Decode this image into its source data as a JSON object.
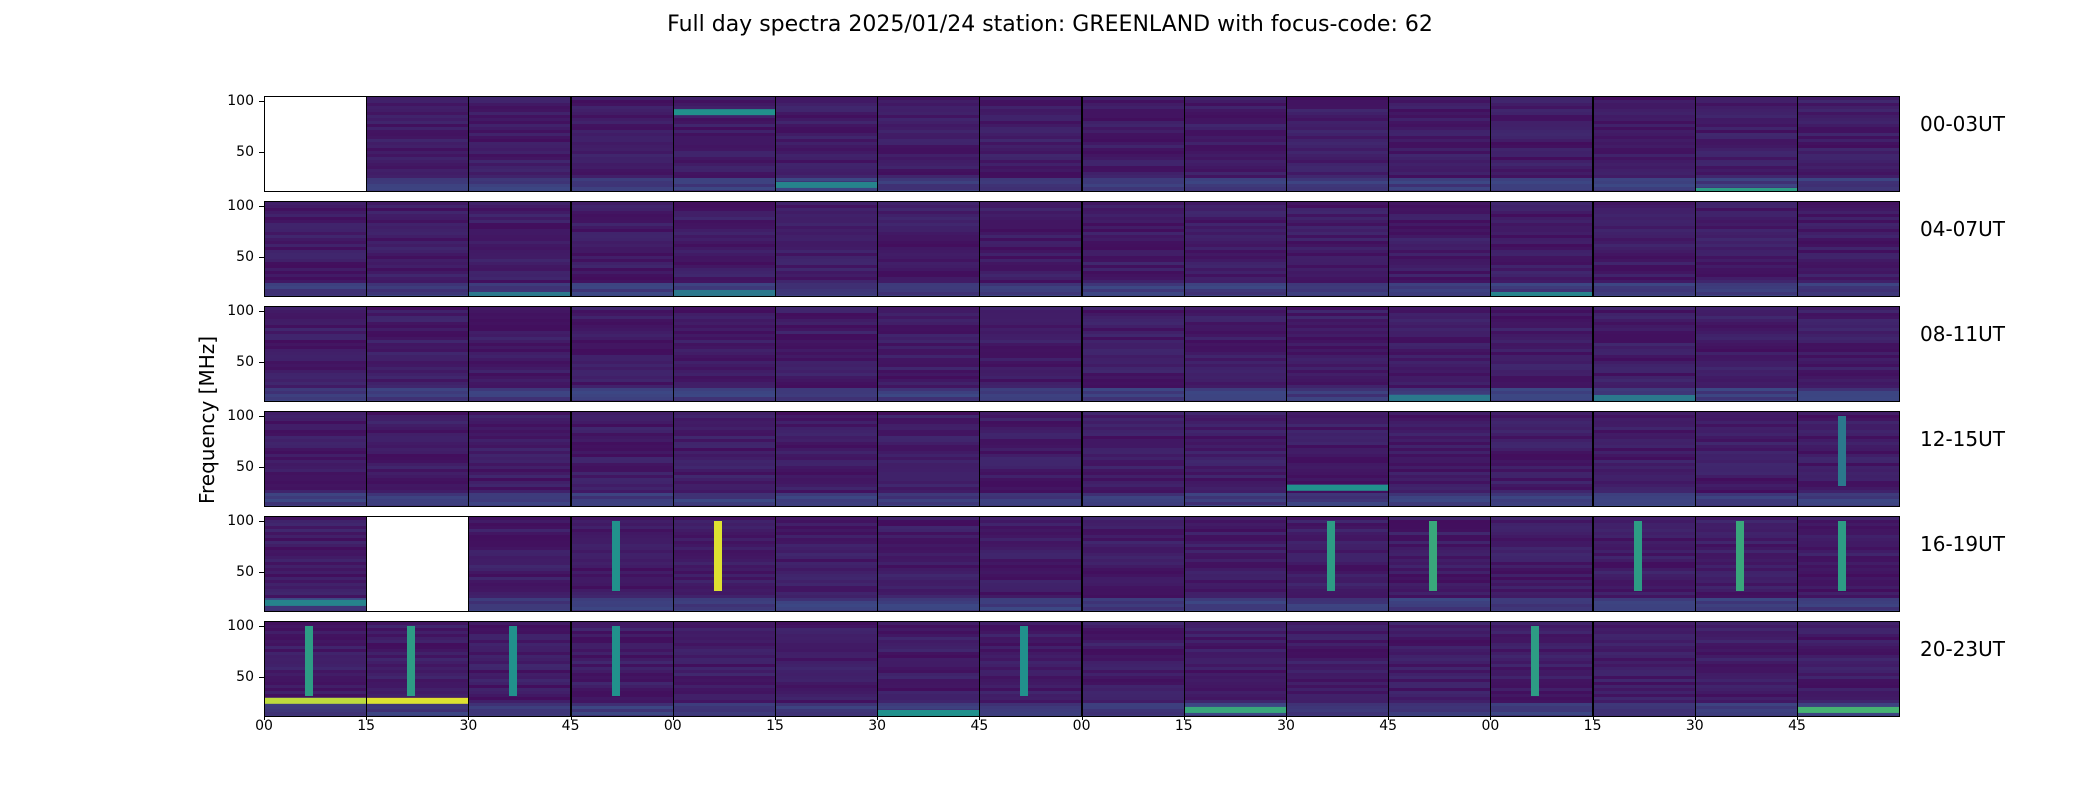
{
  "title": "Full day spectra 2025/01/24 station: GREENLAND with focus-code: 62",
  "ylabel": "Frequency [MHz]",
  "colors": {
    "background_panel": "#440154",
    "colormap": "viridis"
  },
  "chart_data": {
    "type": "heatmap",
    "title": "Full day spectra 2025/01/24 station: GREENLAND with focus-code: 62",
    "ylabel": "Frequency [MHz]",
    "xlabel": "",
    "ylim": [
      10,
      105
    ],
    "yticks": [
      "100",
      "50"
    ],
    "xtick_labels": [
      "00",
      "15",
      "30",
      "45",
      "00",
      "15",
      "30",
      "45",
      "00",
      "15",
      "30",
      "45",
      "00",
      "15",
      "30",
      "45"
    ],
    "rows": [
      {
        "label": "00-03UT",
        "empty_panels": [
          0
        ],
        "highlights": [
          {
            "panel": 4,
            "freq": 90,
            "intensity": 0.5,
            "kind": "band"
          },
          {
            "panel": 5,
            "freq": 18,
            "intensity": 0.45,
            "kind": "band"
          },
          {
            "panel": 14,
            "freq": 12,
            "intensity": 0.55,
            "kind": "band"
          }
        ]
      },
      {
        "label": "04-07UT",
        "empty_panels": [],
        "highlights": [
          {
            "panel": 2,
            "freq": 13,
            "intensity": 0.4,
            "kind": "band"
          },
          {
            "panel": 4,
            "freq": 15,
            "intensity": 0.4,
            "kind": "band"
          },
          {
            "panel": 12,
            "freq": 13,
            "intensity": 0.45,
            "kind": "band"
          }
        ]
      },
      {
        "label": "08-11UT",
        "empty_panels": [],
        "highlights": [
          {
            "panel": 11,
            "freq": 15,
            "intensity": 0.4,
            "kind": "band"
          },
          {
            "panel": 13,
            "freq": 15,
            "intensity": 0.4,
            "kind": "band"
          }
        ]
      },
      {
        "label": "12-15UT",
        "empty_panels": [],
        "highlights": [
          {
            "panel": 10,
            "freq": 30,
            "intensity": 0.5,
            "kind": "band"
          },
          {
            "panel": 15,
            "freq": 70,
            "intensity": 0.4,
            "kind": "burst"
          }
        ]
      },
      {
        "label": "16-19UT",
        "empty_panels": [
          1
        ],
        "highlights": [
          {
            "panel": 0,
            "freq": 20,
            "intensity": 0.45,
            "kind": "band"
          },
          {
            "panel": 3,
            "freq": 75,
            "intensity": 0.5,
            "kind": "burst"
          },
          {
            "panel": 4,
            "freq": 60,
            "intensity": 0.95,
            "kind": "burst"
          },
          {
            "panel": 10,
            "freq": 70,
            "intensity": 0.55,
            "kind": "burst"
          },
          {
            "panel": 11,
            "freq": 70,
            "intensity": 0.6,
            "kind": "burst"
          },
          {
            "panel": 13,
            "freq": 70,
            "intensity": 0.55,
            "kind": "burst"
          },
          {
            "panel": 14,
            "freq": 60,
            "intensity": 0.6,
            "kind": "burst"
          },
          {
            "panel": 15,
            "freq": 70,
            "intensity": 0.55,
            "kind": "burst"
          }
        ]
      },
      {
        "label": "20-23UT",
        "empty_panels": [],
        "highlights": [
          {
            "panel": 0,
            "freq": 27,
            "intensity": 0.9,
            "kind": "band"
          },
          {
            "panel": 1,
            "freq": 27,
            "intensity": 0.95,
            "kind": "band"
          },
          {
            "panel": 0,
            "freq": 75,
            "intensity": 0.55,
            "kind": "burst"
          },
          {
            "panel": 1,
            "freq": 75,
            "intensity": 0.55,
            "kind": "burst"
          },
          {
            "panel": 2,
            "freq": 75,
            "intensity": 0.5,
            "kind": "burst"
          },
          {
            "panel": 3,
            "freq": 75,
            "intensity": 0.5,
            "kind": "burst"
          },
          {
            "panel": 6,
            "freq": 15,
            "intensity": 0.5,
            "kind": "band"
          },
          {
            "panel": 7,
            "freq": 75,
            "intensity": 0.5,
            "kind": "burst"
          },
          {
            "panel": 9,
            "freq": 18,
            "intensity": 0.6,
            "kind": "band"
          },
          {
            "panel": 12,
            "freq": 75,
            "intensity": 0.55,
            "kind": "burst"
          },
          {
            "panel": 15,
            "freq": 18,
            "intensity": 0.65,
            "kind": "band"
          }
        ]
      }
    ]
  }
}
